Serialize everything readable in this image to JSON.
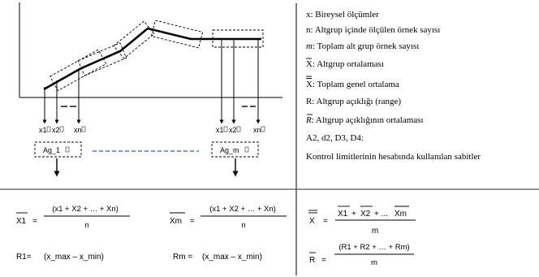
{
  "labels": {
    "left_group": [
      "x1",
      "x2",
      "xn"
    ],
    "right_group": [
      "x1",
      "x2",
      "xn"
    ],
    "ag1": "Ag_1",
    "agm": "Ag_m"
  },
  "legend": [
    {
      "sym": "x",
      "rest": ": Bireysel ölçümler"
    },
    {
      "sym": "n",
      "rest": ":  Altgrup içinde ölçülen örnek sayısı"
    },
    {
      "sym": "m",
      "rest": ":  Toplam alt grup örnek sayısı"
    },
    {
      "sym": "X",
      "rest": ": Altgrup ortalaması"
    },
    {
      "sym": "X",
      "rest": ": Toplam genel ortalama"
    },
    {
      "sym": "R",
      "rest": ": Altgrup açıklığı (range)"
    },
    {
      "sym": "R",
      "rest": ": Altgrup açıklığının ortalaması"
    },
    {
      "sym": "A2, d2, D3, D4",
      "rest": ":"
    },
    {
      "sym": "",
      "rest": "Kontrol limitlerinin hesabında kullanılan sabitler"
    }
  ],
  "formulas": {
    "x1_lhs": "X1",
    "x1_num": "(x1 + X2 + … + Xn)",
    "x1_den": "n",
    "xm_lhs": "Xm",
    "xm_num": "(x1 + X2 + … + Xn)",
    "xm_den": "n",
    "xbarbar_lhs": "X",
    "xbarbar_num_1": "X1",
    "xbarbar_num_2": "X2",
    "xbarbar_num_3": "Xm",
    "xbarbar_den": "m",
    "r1_lhs": "R1=",
    "r1_rhs": "(x_max – x_min)",
    "rm_lhs": "Rm =",
    "rm_rhs": "(x_max – x_min)",
    "rbar_lhs": "R",
    "rbar_num": "(R1 + R2 + … + Rm)",
    "rbar_den": "m"
  },
  "colors": {
    "line": "#000000",
    "dashed_connector": "#6e8fc4"
  }
}
